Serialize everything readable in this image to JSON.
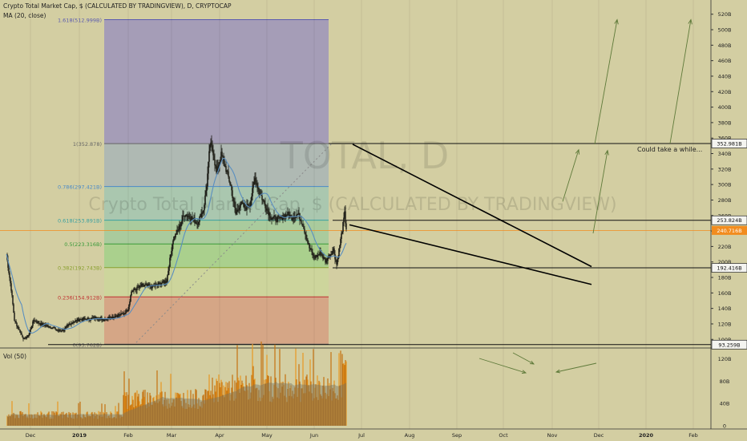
{
  "header": {
    "title": "Crypto Total Market Cap, $ (CALCULATED BY TRADINGVIEW), D, CRYPTOCAP",
    "indicator": "MA (20, close)",
    "vol_label": "Vol (50)"
  },
  "watermark": {
    "symbol": "TOTAL, D",
    "name": "Crypto Total Market Cap, $ (CALCULATED BY TRADINGVIEW)"
  },
  "annotation": "Could take a while...",
  "colors": {
    "background": "#d3cea2",
    "candle": "#1a1a14",
    "ma": "#5a8fc0",
    "volume": "#c4720f",
    "volume_hi": "#e89820",
    "volume_ma": "#8c8a72",
    "current_price": "#f28c1e"
  },
  "chart_data": {
    "type": "line",
    "xlabels": [
      "Dec",
      "2019",
      "Feb",
      "Mar",
      "Apr",
      "May",
      "Jun",
      "Jul",
      "Aug",
      "Sep",
      "Oct",
      "Nov",
      "Dec",
      "2020",
      "Feb"
    ],
    "y_axis_labels": [
      "520B",
      "500B",
      "480B",
      "460B",
      "440B",
      "420B",
      "400B",
      "380B",
      "360B",
      "340B",
      "320B",
      "300B",
      "280B",
      "260B",
      "240B",
      "220B",
      "200B",
      "180B",
      "160B",
      "140B",
      "120B",
      "100B"
    ],
    "ylim": [
      92,
      528
    ],
    "vol_axis_labels": [
      "120B",
      "80B",
      "40B",
      "0"
    ],
    "vol_ylim": [
      0,
      135
    ],
    "price_tags": [
      {
        "label": "352.981B",
        "value": 352.981,
        "style": "white"
      },
      {
        "label": "253.824B",
        "value": 253.824,
        "style": "white"
      },
      {
        "label": "240.716B",
        "value": 240.716,
        "style": "orange"
      },
      {
        "label": "192.416B",
        "value": 192.416,
        "style": "white"
      },
      {
        "label": "93.259B",
        "value": 93.259,
        "style": "white"
      }
    ],
    "fib_levels": [
      {
        "label": "1.618(512.999B)",
        "value": 512.999,
        "color": "#5a5ab0"
      },
      {
        "label": "1(352.878)",
        "value": 352.878,
        "color": "#666666"
      },
      {
        "label": "0.786(297.421B)",
        "value": 297.421,
        "color": "#4a8ac8"
      },
      {
        "label": "0.618(253.891B)",
        "value": 253.891,
        "color": "#3aa0a0"
      },
      {
        "label": "0.5(223.316B)",
        "value": 223.316,
        "color": "#3a9a3a"
      },
      {
        "label": "0.382(192.743B)",
        "value": 192.743,
        "color": "#8aa030"
      },
      {
        "label": "0.236(154.912B)",
        "value": 154.912,
        "color": "#c03030"
      },
      {
        "label": "0(93.762B)",
        "value": 93.762,
        "color": "#666666"
      }
    ],
    "series": [
      {
        "name": "Price",
        "key_points": [
          [
            0,
            210
          ],
          [
            6,
            165
          ],
          [
            10,
            125
          ],
          [
            16,
            112
          ],
          [
            22,
            100
          ],
          [
            28,
            106
          ],
          [
            34,
            125
          ],
          [
            42,
            120
          ],
          [
            50,
            118
          ],
          [
            60,
            114
          ],
          [
            66,
            111
          ],
          [
            72,
            113
          ],
          [
            82,
            122
          ],
          [
            92,
            126
          ],
          [
            102,
            126
          ],
          [
            112,
            128
          ],
          [
            122,
            126
          ],
          [
            132,
            129
          ],
          [
            146,
            133
          ],
          [
            152,
            140
          ],
          [
            156,
            162
          ],
          [
            170,
            170
          ],
          [
            182,
            168
          ],
          [
            192,
            172
          ],
          [
            200,
            176
          ],
          [
            208,
            230
          ],
          [
            214,
            240
          ],
          [
            222,
            262
          ],
          [
            230,
            258
          ],
          [
            238,
            250
          ],
          [
            246,
            268
          ],
          [
            250,
            300
          ],
          [
            254,
            352
          ],
          [
            258,
            342
          ],
          [
            262,
            315
          ],
          [
            268,
            338
          ],
          [
            274,
            320
          ],
          [
            280,
            298
          ],
          [
            286,
            262
          ],
          [
            292,
            275
          ],
          [
            298,
            270
          ],
          [
            304,
            275
          ],
          [
            310,
            308
          ],
          [
            316,
            290
          ],
          [
            322,
            275
          ],
          [
            330,
            258
          ],
          [
            340,
            255
          ],
          [
            350,
            262
          ],
          [
            356,
            258
          ],
          [
            364,
            262
          ],
          [
            370,
            248
          ],
          [
            378,
            218
          ],
          [
            384,
            206
          ],
          [
            392,
            211
          ],
          [
            398,
            201
          ],
          [
            404,
            210
          ],
          [
            408,
            216
          ],
          [
            412,
            197
          ],
          [
            416,
            222
          ],
          [
            420,
            248
          ],
          [
            422,
            262
          ],
          [
            424,
            242
          ]
        ]
      },
      {
        "name": "MA (20, close)"
      }
    ]
  }
}
